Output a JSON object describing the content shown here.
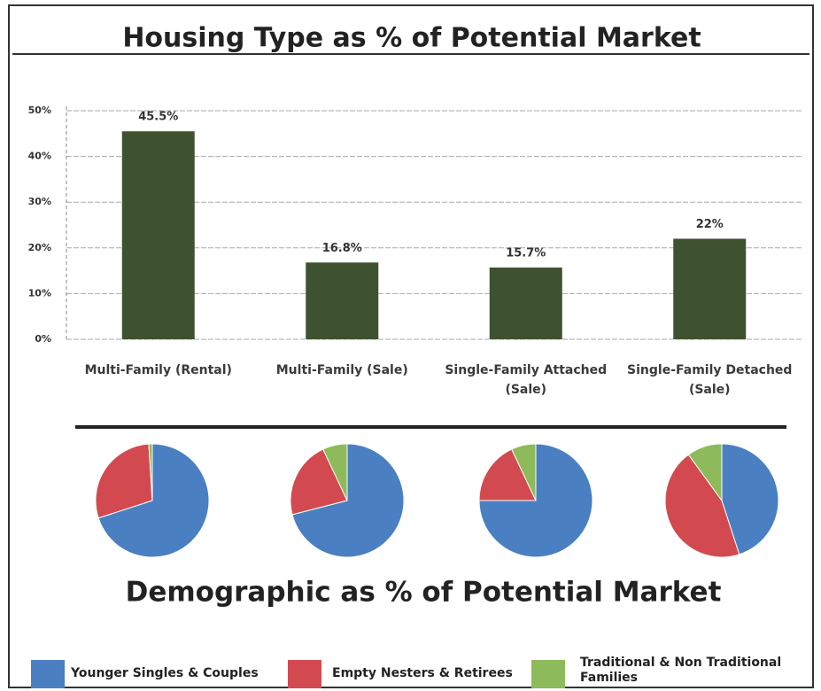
{
  "chart_data": [
    {
      "type": "bar",
      "title": "Housing Type as % of Potential Market",
      "categories": [
        "Multi-Family (Rental)",
        "Multi-Family (Sale)",
        "Single-Family Attached (Sale)",
        "Single-Family Detached (Sale)"
      ],
      "values": [
        45.5,
        16.8,
        15.7,
        22
      ],
      "value_labels": [
        "45.5%",
        "16.8%",
        "15.7%",
        "22%"
      ],
      "color": "#3e5230",
      "ylim": [
        0,
        50
      ],
      "yticks": [
        {
          "value": 0,
          "label": "0%"
        },
        {
          "value": 10,
          "label": "10%"
        },
        {
          "value": 20,
          "label": "20%"
        },
        {
          "value": 30,
          "label": "30%"
        },
        {
          "value": 40,
          "label": "40%"
        },
        {
          "value": 50,
          "label": "50%"
        }
      ],
      "grid": true
    },
    {
      "type": "pie",
      "title": "Demographic as % of Potential Market",
      "categories": [
        "Younger Singles & Couples",
        "Empty Nesters & Retirees",
        "Traditional & Non Traditional Families"
      ],
      "colors": [
        "#4a7fc1",
        "#d24a4f",
        "#8dba5a"
      ],
      "series": [
        {
          "values": [
            70,
            29,
            1
          ]
        },
        {
          "values": [
            71,
            22,
            7
          ]
        },
        {
          "values": [
            75,
            18,
            7
          ]
        },
        {
          "values": [
            45,
            45,
            10
          ]
        }
      ]
    }
  ]
}
